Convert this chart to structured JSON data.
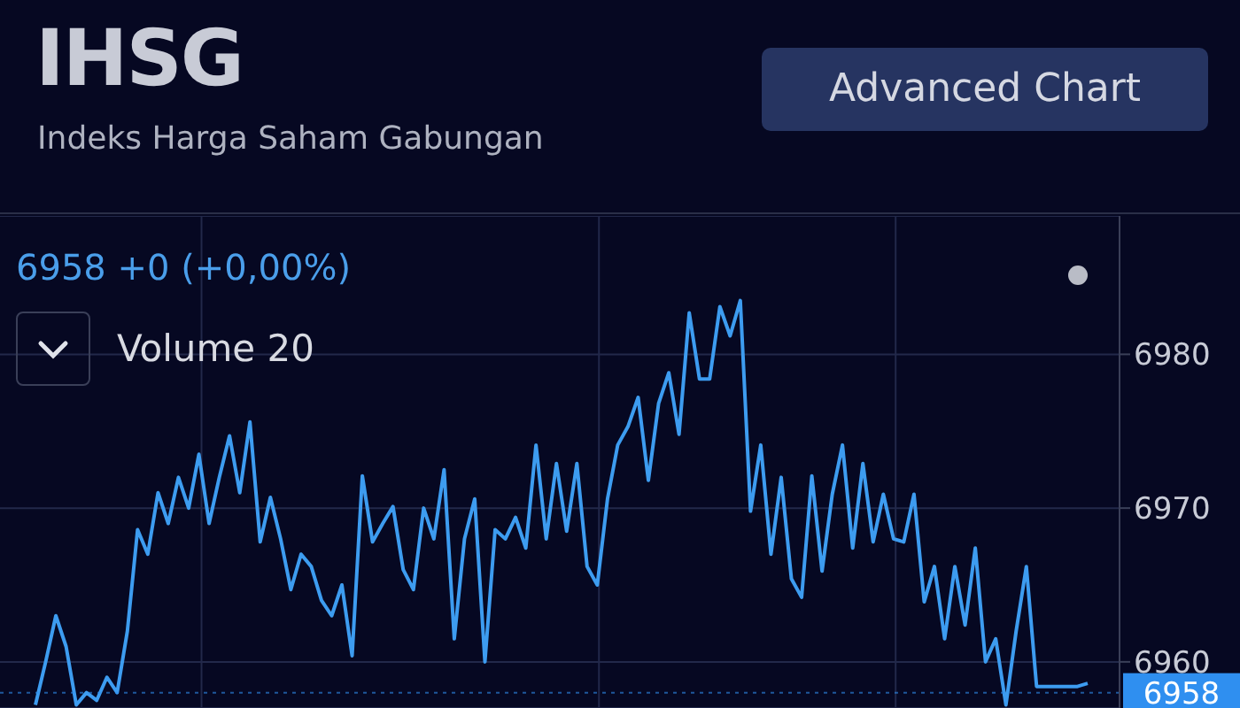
{
  "chart_data": {
    "type": "line",
    "title": "IHSG",
    "subtitle": "Indeks Harga Saham Gabungan",
    "annotations": [
      "6958 +0 (+0,00%)",
      "Volume 20",
      "Advanced Chart"
    ],
    "categories": [
      null,
      null,
      null,
      null,
      null,
      null,
      null,
      null,
      null,
      null,
      null,
      null,
      null,
      null,
      null,
      null,
      null,
      null,
      null,
      null,
      null,
      null,
      null,
      null,
      null,
      null,
      null,
      null,
      null,
      null,
      null,
      null,
      null,
      null,
      null,
      null,
      null,
      null,
      null,
      null,
      null,
      null,
      null,
      null,
      null,
      null,
      null,
      null,
      null,
      null,
      null,
      null,
      null,
      null,
      null,
      null,
      null,
      null,
      null,
      null,
      null,
      null,
      null,
      null,
      null,
      null,
      null,
      null,
      null,
      null,
      null,
      null,
      null,
      null,
      null,
      null,
      null,
      null,
      null,
      null,
      null,
      null,
      null,
      null,
      null,
      null,
      null,
      null,
      null,
      null,
      null,
      null,
      null,
      null,
      null,
      null,
      null,
      null,
      null,
      null,
      null,
      null,
      null,
      null
    ],
    "series": [
      {
        "color": "#3d9cf0",
        "values": [
          6957.2,
          6960,
          6963,
          6961,
          6957.2,
          6958,
          6957.5,
          6959,
          6958,
          6962,
          6968.6,
          6967,
          6971,
          6969,
          6972,
          6970,
          6973.5,
          6969,
          6972,
          6974.7,
          6971,
          6975.6,
          6967.8,
          6970.7,
          6968,
          6964.7,
          6967,
          6966.2,
          6964,
          6963,
          6965,
          6960.4,
          6972.1,
          6967.8,
          6969,
          6970.1,
          6966,
          6964.7,
          6970,
          6968,
          6972.5,
          6961.5,
          6968,
          6970.6,
          6960,
          6968.6,
          6968,
          6969.4,
          6967.4,
          6974.1,
          6968,
          6972.9,
          6968.5,
          6972.9,
          6966.2,
          6965,
          6970.6,
          6974.1,
          6975.3,
          6977.2,
          6971.8,
          6976.8,
          6978.8,
          6974.8,
          6982.7,
          6978.4,
          6978.4,
          6983.1,
          6981.2,
          6983.5,
          6969.8,
          6974.1,
          6967,
          6972,
          6965.4,
          6964.2,
          6972.1,
          6965.9,
          6970.9,
          6974.1,
          6967.4,
          6972.9,
          6967.8,
          6970.9,
          6968,
          6967.8,
          6970.9,
          6963.9,
          6966.2,
          6961.5,
          6966.2,
          6962.4,
          6967.4,
          6960,
          6961.5,
          6957.2,
          6962,
          6966.2,
          6958.4,
          6958.4,
          6958.4,
          6958.4,
          6958.4,
          6958.6
        ]
      }
    ],
    "ylim": [
      6957,
      6989
    ],
    "yticks": [
      6960,
      6970,
      6980
    ],
    "grid": true,
    "legend": false,
    "tick_labels": "y",
    "marker": "none",
    "line_style": "solid",
    "ref_lines": [
      {
        "axis": "y",
        "value": 6958,
        "label": "6958",
        "color": "#2f8ff0",
        "line_style": "dotted"
      }
    ]
  }
}
